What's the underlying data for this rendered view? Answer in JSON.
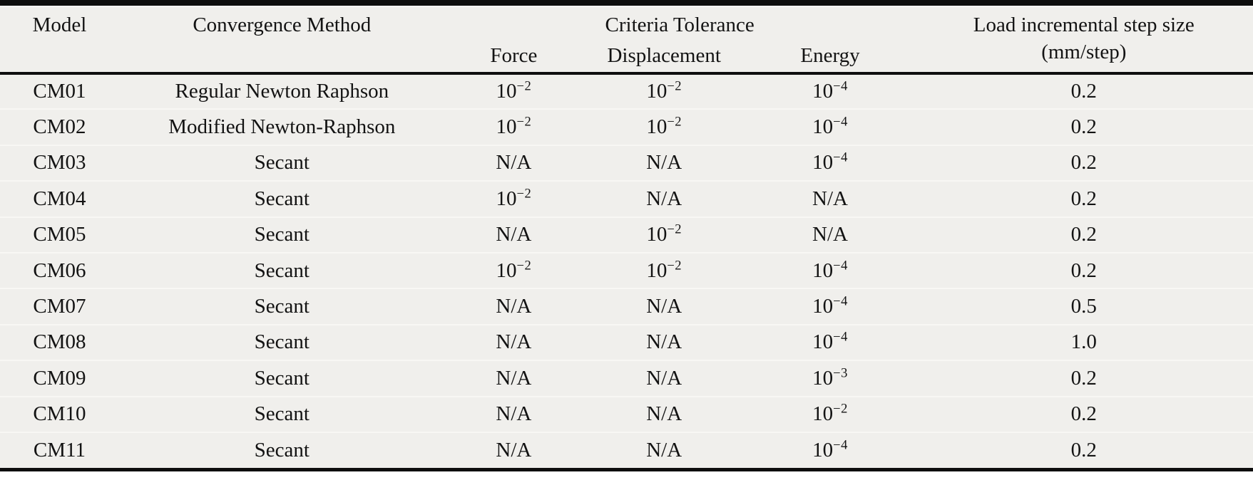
{
  "table": {
    "columns": {
      "model": "Model",
      "method": "Convergence Method",
      "criteria_group": "Criteria Tolerance",
      "force": "Force",
      "displacement": "Displacement",
      "energy": "Energy",
      "load_line1": "Load incremental step size",
      "load_line2": "(mm/step)"
    },
    "rows": [
      {
        "model": "CM01",
        "method": "Regular Newton Raphson",
        "force": "10^−2",
        "displacement": "10^−2",
        "energy": "10^−4",
        "step": "0.2"
      },
      {
        "model": "CM02",
        "method": "Modified Newton-Raphson",
        "force": "10^−2",
        "displacement": "10^−2",
        "energy": "10^−4",
        "step": "0.2"
      },
      {
        "model": "CM03",
        "method": "Secant",
        "force": "N/A",
        "displacement": "N/A",
        "energy": "10^−4",
        "step": "0.2"
      },
      {
        "model": "CM04",
        "method": "Secant",
        "force": "10^−2",
        "displacement": "N/A",
        "energy": "N/A",
        "step": "0.2"
      },
      {
        "model": "CM05",
        "method": "Secant",
        "force": "N/A",
        "displacement": "10^−2",
        "energy": "N/A",
        "step": "0.2"
      },
      {
        "model": "CM06",
        "method": "Secant",
        "force": "10^−2",
        "displacement": "10^−2",
        "energy": "10^−4",
        "step": "0.2"
      },
      {
        "model": "CM07",
        "method": "Secant",
        "force": "N/A",
        "displacement": "N/A",
        "energy": "10^−4",
        "step": "0.5"
      },
      {
        "model": "CM08",
        "method": "Secant",
        "force": "N/A",
        "displacement": "N/A",
        "energy": "10^−4",
        "step": "1.0"
      },
      {
        "model": "CM09",
        "method": "Secant",
        "force": "N/A",
        "displacement": "N/A",
        "energy": "10^−3",
        "step": "0.2"
      },
      {
        "model": "CM10",
        "method": "Secant",
        "force": "N/A",
        "displacement": "N/A",
        "energy": "10^−2",
        "step": "0.2"
      },
      {
        "model": "CM11",
        "method": "Secant",
        "force": "N/A",
        "displacement": "N/A",
        "energy": "10^−4",
        "step": "0.2"
      }
    ]
  },
  "colors": {
    "page_bg": "#ffffff",
    "table_bg": "#f0efec",
    "rule": "#0e0e0e",
    "row_divider": "#f8f7f4",
    "text": "#131313"
  }
}
